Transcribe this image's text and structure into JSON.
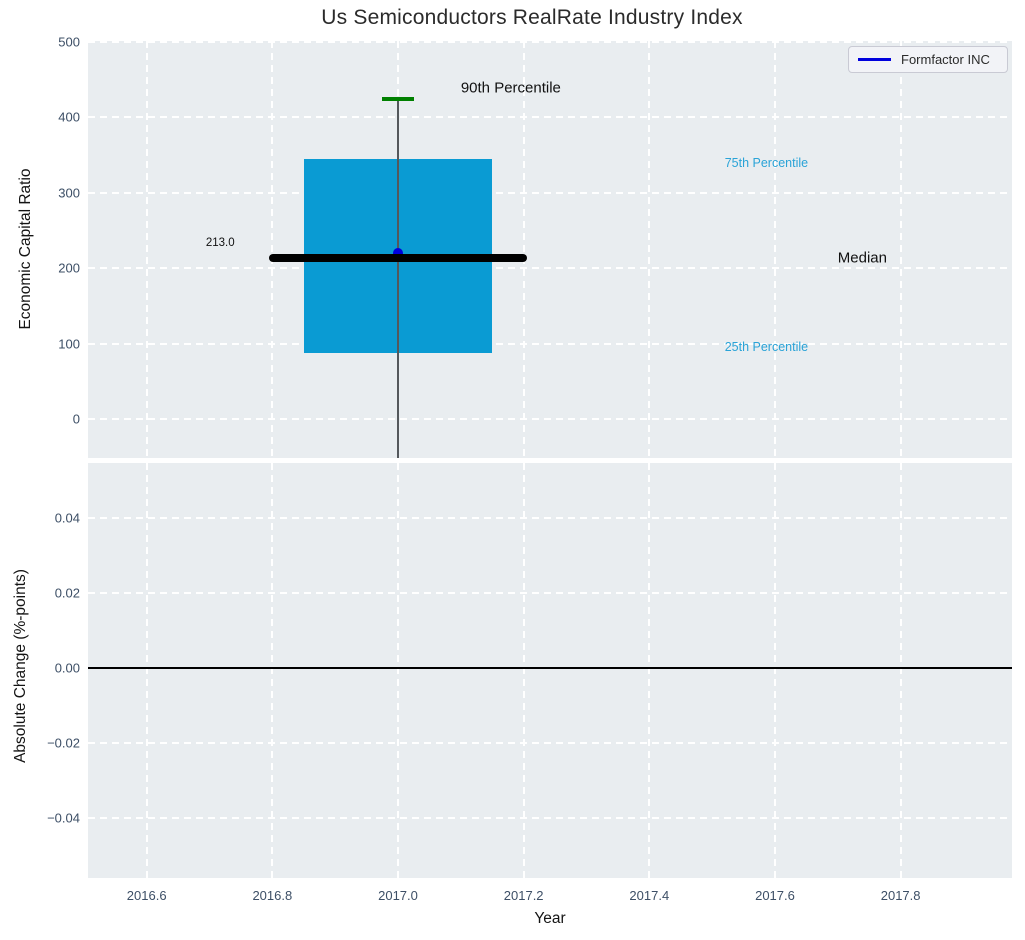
{
  "title": "Us Semiconductors RealRate Industry Index",
  "colors": {
    "box_fill": "#0a9bd3",
    "whisker": "#54585c",
    "cap_90th": "#008000",
    "median_line": "#000000",
    "company_marker": "#0000dd",
    "percentile_label": "#2aa3d7",
    "plot_bg": "#e9edf0",
    "grid": "#ffffff",
    "tick_text": "#3d4f66",
    "zero_line": "#000000"
  },
  "x_axis": {
    "label": "Year",
    "ticks": [
      2016.6,
      2016.8,
      2017.0,
      2017.2,
      2017.4,
      2017.6,
      2017.8
    ],
    "tick_labels": [
      "2016.6",
      "2016.8",
      "2017.0",
      "2017.2",
      "2017.4",
      "2017.6",
      "2017.8"
    ],
    "xlim": [
      2016.505,
      2017.98
    ]
  },
  "chart_data": [
    {
      "type": "box",
      "subplot": "top",
      "title": "Us Semiconductors RealRate Industry Index",
      "ylabel": "Economic Capital Ratio",
      "xlabel": "",
      "grid": true,
      "legend": {
        "position": "top-right",
        "entries": [
          {
            "label": "Formfactor INC",
            "color": "#0000dd"
          }
        ]
      },
      "yticks": {
        "values": [
          0,
          100,
          200,
          300,
          400,
          500
        ],
        "labels": [
          "0",
          "100",
          "200",
          "300",
          "400",
          "500"
        ]
      },
      "ylim": [
        -55,
        501
      ],
      "boxes": [
        {
          "x": 2017.0,
          "p90": 425,
          "p75": 345,
          "median": 213.0,
          "p25": 87,
          "p10": null,
          "p10_clipped_below_axis": true,
          "box_half_width": 0.15,
          "median_line_half_width": 0.205
        }
      ],
      "points": [
        {
          "name": "Formfactor INC",
          "x": 2017.0,
          "y": 220
        }
      ],
      "annotations": [
        {
          "text": "90th Percentile",
          "x": 2017.1,
          "y": 439,
          "align": "left",
          "style": "primary"
        },
        {
          "text": "75th Percentile",
          "x": 2017.52,
          "y": 340,
          "align": "left",
          "style": "secondary"
        },
        {
          "text": "Median",
          "x": 2017.7,
          "y": 213,
          "align": "left",
          "style": "primary"
        },
        {
          "text": "25th Percentile",
          "x": 2017.52,
          "y": 95,
          "align": "left",
          "style": "secondary"
        },
        {
          "text": "213.0",
          "x": 2016.74,
          "y": 233,
          "align": "right",
          "style": "small"
        }
      ]
    },
    {
      "type": "line",
      "subplot": "bottom",
      "ylabel": "Absolute Change (%-points)",
      "xlabel": "Year",
      "grid": true,
      "series": [],
      "zero_line": 0.0,
      "yticks": {
        "values": [
          -0.04,
          -0.02,
          0.0,
          0.02,
          0.04
        ],
        "labels": [
          "−0.04",
          "−0.02",
          "0.00",
          "0.02",
          "0.04"
        ]
      },
      "ylim": [
        -0.056,
        0.055
      ]
    }
  ]
}
